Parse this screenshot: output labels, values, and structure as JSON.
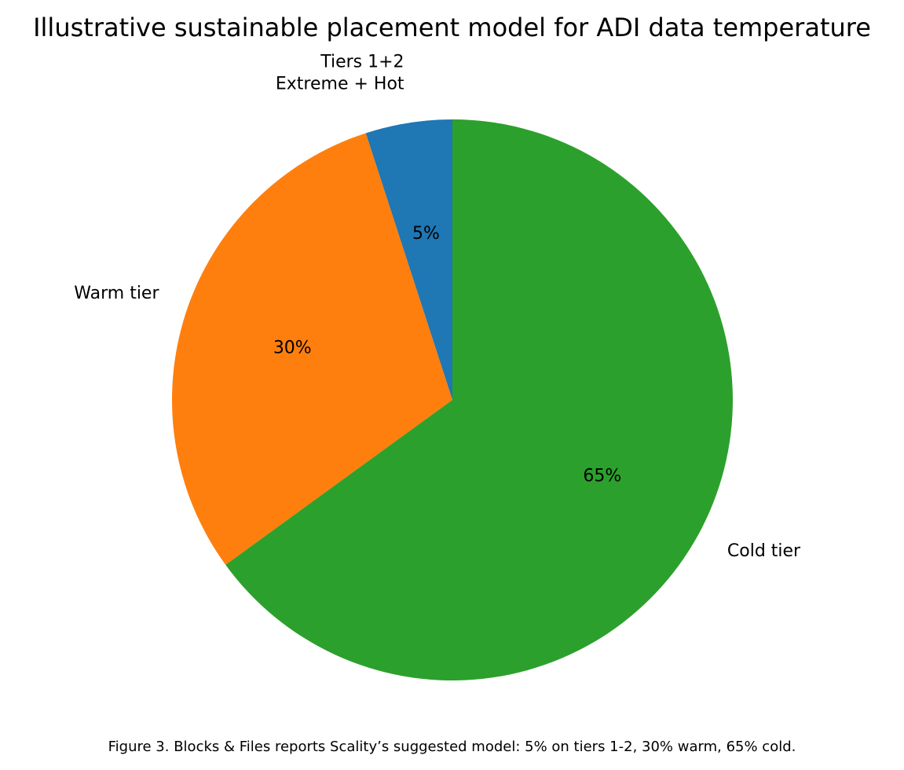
{
  "chart_data": {
    "type": "pie",
    "title": "Illustrative sustainable placement model for ADI data temperature",
    "start_angle_deg": 90,
    "direction": "counterclockwise",
    "slices": [
      {
        "label_lines": [
          "Tiers 1+2",
          "Extreme + Hot"
        ],
        "value": 5,
        "pct_label": "5%",
        "color": "#1f77b4"
      },
      {
        "label_lines": [
          "Warm tier"
        ],
        "value": 30,
        "pct_label": "30%",
        "color": "#ff7f0e"
      },
      {
        "label_lines": [
          "Cold tier"
        ],
        "value": 65,
        "pct_label": "65%",
        "color": "#2ca02c"
      }
    ],
    "legend": "none"
  },
  "caption": "Figure 3. Blocks & Files reports Scality’s suggested model: 5% on tiers 1-2, 30% warm, 65% cold."
}
